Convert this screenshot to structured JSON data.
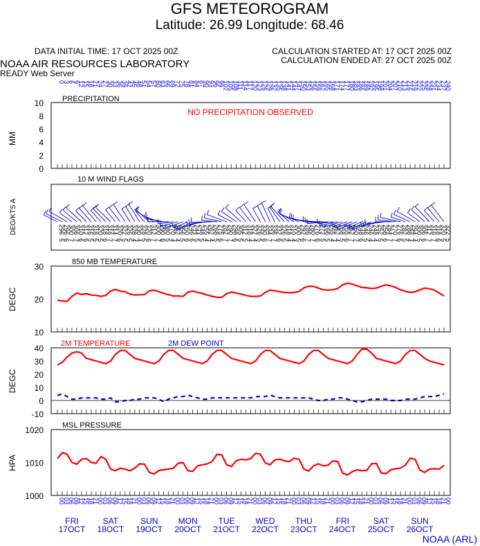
{
  "header": {
    "title": "GFS METEOROGRAM",
    "subtitle": "Latitude: 26.99 Longitude:  68.46",
    "init_time": "DATA INITIAL TIME: 17 OCT 2025 00Z",
    "calc_started": "CALCULATION STARTED AT: 17 OCT 2025 00Z",
    "calc_ended": "CALCULATION ENDED AT: 27 OCT 2025 00Z",
    "lab": "NOAA AIR RESOURCES LABORATORY",
    "server": "READY Web Server",
    "footer": "NOAA (ARL)"
  },
  "colors": {
    "red": "#ff0000",
    "blue": "#0000cc",
    "text": "#000000",
    "grid": "#000000"
  },
  "top_hour_labels": [
    "0",
    "3",
    "6",
    "9",
    "12",
    "15",
    "18",
    "21",
    "24",
    "27",
    "30",
    "33",
    "36",
    "39",
    "42",
    "45",
    "48",
    "51",
    "54",
    "57",
    "60",
    "63",
    "66",
    "69",
    "72",
    "75",
    "78",
    "81",
    "84",
    "87",
    "90",
    "93",
    "96",
    "99",
    "102",
    "105",
    "108",
    "111",
    "114",
    "117",
    "120",
    "123",
    "126",
    "129",
    "132",
    "135",
    "138",
    "141",
    "144",
    "147",
    "150",
    "153",
    "156",
    "159",
    "162",
    "165",
    "168",
    "171",
    "174",
    "177",
    "180",
    "183",
    "186",
    "189",
    "192",
    "195",
    "198",
    "201",
    "204",
    "207",
    "210",
    "213",
    "216",
    "219",
    "222",
    "225",
    "228",
    "231",
    "234",
    "237",
    "240"
  ],
  "bottom_hour_labels": [
    "00",
    "03",
    "06",
    "09",
    "12",
    "15",
    "18",
    "21",
    "00",
    "03",
    "06",
    "09",
    "12",
    "15",
    "18",
    "21",
    "00",
    "03",
    "06",
    "09",
    "12",
    "15",
    "18",
    "21",
    "00",
    "03",
    "06",
    "09",
    "12",
    "15",
    "18",
    "21",
    "00",
    "03",
    "06",
    "09",
    "12",
    "15",
    "18",
    "21",
    "00",
    "03",
    "06",
    "09",
    "12",
    "15",
    "18",
    "21",
    "00",
    "03",
    "06",
    "09",
    "12",
    "15",
    "18",
    "21",
    "00",
    "03",
    "06",
    "09",
    "12",
    "15",
    "18",
    "21",
    "00",
    "03",
    "06",
    "09",
    "12",
    "15",
    "18",
    "21",
    "00",
    "03",
    "06",
    "09",
    "12",
    "15",
    "18",
    "21",
    "00"
  ],
  "day_labels": [
    {
      "day": "FRI",
      "date": "17OCT"
    },
    {
      "day": "SAT",
      "date": "18OCT"
    },
    {
      "day": "SUN",
      "date": "19OCT"
    },
    {
      "day": "MON",
      "date": "20OCT"
    },
    {
      "day": "TUE",
      "date": "21OCT"
    },
    {
      "day": "WED",
      "date": "22OCT"
    },
    {
      "day": "THU",
      "date": "23OCT"
    },
    {
      "day": "FRI",
      "date": "24OCT"
    },
    {
      "day": "SAT",
      "date": "25OCT"
    },
    {
      "day": "SUN",
      "date": "26OCT"
    }
  ],
  "chart_data": [
    {
      "type": "bar",
      "title": "PRECIPITATION",
      "ylabel": "MM",
      "ylim": [
        0,
        10
      ],
      "yticks": [
        0,
        2,
        4,
        6,
        8,
        10
      ],
      "annotation": "NO PRECIPITATION OBSERVED",
      "values": []
    },
    {
      "type": "wind",
      "title": "10 M  WIND FLAGS",
      "ylabel": "DEG/KTS  A",
      "directions": [
        296,
        296,
        300,
        306,
        310,
        312,
        316,
        318,
        320,
        318,
        316,
        314,
        320,
        322,
        326,
        328,
        330,
        328,
        320,
        312,
        300,
        290,
        280,
        270,
        262,
        256,
        250,
        246,
        244,
        248,
        255,
        262,
        268,
        275,
        282,
        290,
        298,
        305,
        312,
        318,
        322,
        326,
        330,
        334,
        336,
        332,
        326,
        318,
        310,
        300,
        292,
        286,
        280,
        276,
        272,
        268,
        265,
        262,
        258,
        255,
        252,
        250,
        248,
        246,
        246,
        248,
        252,
        258,
        264,
        270,
        276,
        282,
        288,
        294,
        300,
        306,
        312,
        316,
        318,
        320,
        322
      ],
      "speeds": [
        5,
        6,
        7,
        7,
        6,
        6,
        5,
        5,
        5,
        6,
        7,
        7,
        6,
        5,
        5,
        4,
        4,
        5,
        6,
        7,
        7,
        6,
        5,
        4,
        4,
        5,
        6,
        6,
        5,
        5,
        4,
        4,
        5,
        6,
        7,
        7,
        6,
        5,
        5,
        4,
        4,
        5,
        6,
        7,
        7,
        6,
        5,
        4,
        4,
        5,
        6,
        7,
        7,
        6,
        5,
        5,
        4,
        4,
        5,
        6,
        7,
        7,
        6,
        5,
        4,
        4,
        5,
        6,
        7,
        7,
        6,
        5,
        4,
        4,
        5,
        6,
        7,
        7,
        6,
        5,
        5
      ]
    },
    {
      "type": "line",
      "title": "850 MB  TEMPERATURE",
      "ylabel": "DEGC",
      "ylim": [
        10,
        30
      ],
      "yticks": [
        10,
        20,
        30
      ],
      "series": [
        {
          "name": "",
          "color": "#ff0000",
          "values": [
            19.7,
            19.4,
            19.3,
            20.8,
            21.8,
            21.4,
            21.6,
            21.2,
            21.1,
            20.8,
            21.1,
            22.4,
            22.9,
            22.4,
            22.2,
            21.5,
            21.2,
            21.3,
            21.3,
            22.5,
            22.7,
            22.2,
            21.7,
            21.3,
            20.9,
            20.9,
            20.8,
            22.1,
            22.4,
            22.0,
            21.7,
            21.2,
            20.8,
            20.5,
            20.5,
            21.6,
            22.1,
            21.8,
            21.5,
            21.1,
            20.8,
            20.8,
            20.9,
            22.0,
            22.7,
            22.5,
            22.2,
            22.0,
            21.9,
            22.0,
            22.3,
            23.4,
            23.9,
            23.8,
            23.3,
            22.8,
            22.7,
            22.8,
            23.2,
            24.3,
            24.8,
            24.5,
            24.0,
            23.5,
            23.4,
            23.2,
            23.3,
            23.9,
            24.3,
            24.0,
            23.5,
            22.8,
            22.3,
            22.0,
            22.2,
            22.8,
            23.3,
            23.1,
            22.7,
            21.8,
            20.9
          ]
        }
      ]
    },
    {
      "type": "line",
      "ylabel": "DEGC",
      "ylim": [
        -10,
        40
      ],
      "yticks": [
        -10,
        0,
        10,
        20,
        30,
        40
      ],
      "series": [
        {
          "name": "2M TEMPERATURE",
          "color": "#ff0000",
          "values": [
            27,
            29,
            33,
            36,
            37,
            36,
            32,
            31,
            30,
            29,
            28,
            30,
            35,
            38,
            38,
            35,
            32,
            31,
            30,
            29,
            28,
            30,
            35,
            38,
            38,
            35,
            32,
            31,
            30,
            29,
            28,
            30,
            35,
            38,
            38,
            35,
            32,
            31,
            30,
            29,
            28,
            30,
            35,
            38,
            38,
            35,
            32,
            31,
            30,
            29,
            28,
            30,
            35,
            38,
            38,
            35,
            32,
            31,
            30,
            29,
            28,
            30,
            35,
            39,
            39,
            36,
            32,
            31,
            30,
            29,
            28,
            30,
            35,
            38,
            38,
            35,
            32,
            30,
            29,
            28,
            27
          ]
        },
        {
          "name": "2M  DEW POINT",
          "color": "#0000cc",
          "values": [
            4,
            5,
            3,
            1,
            1,
            2,
            2,
            2,
            2,
            1,
            1,
            2,
            -1,
            -1,
            0,
            0,
            1,
            1,
            2,
            2,
            2,
            1,
            -1,
            1,
            2,
            3,
            3,
            4,
            3,
            2,
            1,
            1,
            2,
            2,
            2,
            2,
            2,
            2,
            2,
            2,
            2,
            3,
            3,
            3,
            4,
            3,
            2,
            2,
            2,
            2,
            2,
            2,
            2,
            1,
            0,
            0,
            1,
            1,
            2,
            2,
            1,
            0,
            -1,
            -1,
            0,
            1,
            1,
            1,
            1,
            0,
            0,
            0,
            1,
            1,
            1,
            2,
            3,
            3,
            3,
            4,
            5
          ]
        }
      ]
    },
    {
      "type": "line",
      "title": "MSL PRESSURE",
      "ylabel": "HPA",
      "ylim": [
        1000,
        1020
      ],
      "yticks": [
        1000,
        1010,
        1020
      ],
      "series": [
        {
          "name": "",
          "color": "#ff0000",
          "values": [
            1011.2,
            1013.0,
            1012.5,
            1010.0,
            1009.5,
            1011.0,
            1011.2,
            1010.0,
            1009.8,
            1011.8,
            1011.0,
            1008.0,
            1007.5,
            1008.3,
            1008.0,
            1007.5,
            1008.3,
            1009.6,
            1009.5,
            1007.0,
            1006.5,
            1007.6,
            1007.8,
            1008.0,
            1008.3,
            1009.8,
            1010.0,
            1007.5,
            1007.3,
            1009.0,
            1009.3,
            1009.6,
            1010.3,
            1012.5,
            1012.3,
            1009.3,
            1008.8,
            1010.5,
            1011.0,
            1010.8,
            1011.2,
            1012.8,
            1012.5,
            1009.9,
            1009.3,
            1010.8,
            1011.0,
            1010.5,
            1010.3,
            1011.3,
            1011.0,
            1008.0,
            1007.4,
            1009.0,
            1009.6,
            1009.0,
            1009.2,
            1010.5,
            1010.3,
            1006.8,
            1006.2,
            1007.2,
            1007.8,
            1007.5,
            1007.6,
            1009.6,
            1009.7,
            1006.8,
            1006.6,
            1007.8,
            1008.1,
            1008.3,
            1009.2,
            1011.3,
            1011.0,
            1007.7,
            1007.0,
            1008.0,
            1008.1,
            1008.0,
            1009.2
          ]
        }
      ]
    }
  ]
}
